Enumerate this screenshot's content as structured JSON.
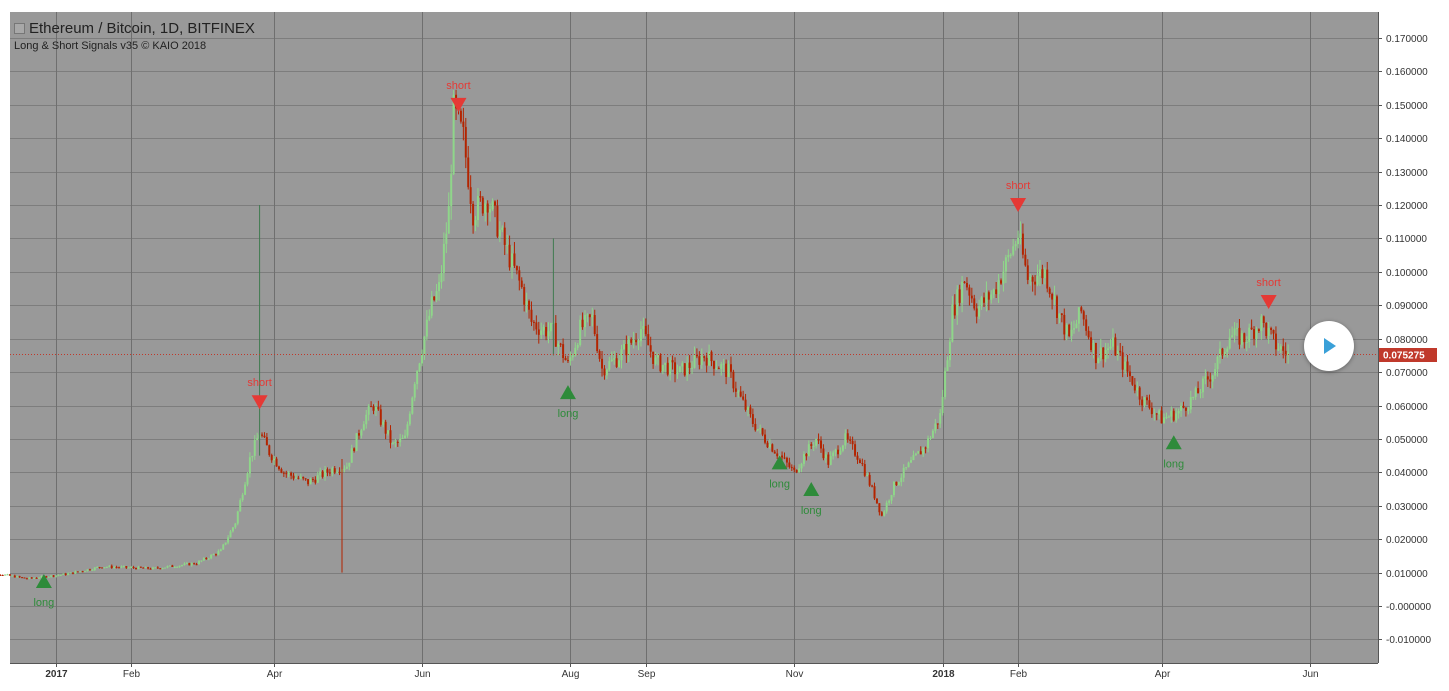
{
  "header": {
    "title": "Ethereum / Bitcoin, 1D, BITFINEX",
    "subtitle": "Long & Short Signals v35 © KAIO 2018"
  },
  "price_label": "0.075275",
  "colors": {
    "plot_bg": "#999999",
    "up": "#8fd68a",
    "down": "#b32400",
    "short": "#e53935",
    "long": "#2e8b3a",
    "price_line": "#c0392b",
    "play": "#3aa0d8"
  },
  "play_button": {
    "icon": "play-icon"
  },
  "chart_data": {
    "type": "candlestick",
    "symbol": "Ethereum / Bitcoin",
    "interval": "1D",
    "exchange": "BITFINEX",
    "indicator": "Long & Short Signals v35 © KAIO 2018",
    "ylim": [
      -0.013,
      0.177
    ],
    "yticks": [
      "0.170000",
      "0.160000",
      "0.150000",
      "0.140000",
      "0.130000",
      "0.120000",
      "0.110000",
      "0.100000",
      "0.090000",
      "0.080000",
      "0.070000",
      "0.060000",
      "0.050000",
      "0.040000",
      "0.030000",
      "0.020000",
      "0.010000",
      "-0.000000",
      "-0.010000"
    ],
    "xticks": [
      {
        "label": "2017",
        "date": "2017-01-01",
        "bold": true
      },
      {
        "label": "Feb",
        "date": "2017-02-01"
      },
      {
        "label": "Apr",
        "date": "2017-04-01"
      },
      {
        "label": "Jun",
        "date": "2017-06-01"
      },
      {
        "label": "Aug",
        "date": "2017-08-01"
      },
      {
        "label": "Sep",
        "date": "2017-09-01"
      },
      {
        "label": "Nov",
        "date": "2017-11-01"
      },
      {
        "label": "2018",
        "date": "2018-01-01",
        "bold": true
      },
      {
        "label": "Feb",
        "date": "2018-02-01"
      },
      {
        "label": "Apr",
        "date": "2018-04-01"
      },
      {
        "label": "Jun",
        "date": "2018-06-01"
      }
    ],
    "last_price": 0.075275,
    "close_path": [
      [
        "2016-12-01",
        0.0105
      ],
      [
        "2016-12-20",
        0.0082
      ],
      [
        "2017-01-05",
        0.0095
      ],
      [
        "2017-01-20",
        0.0118
      ],
      [
        "2017-02-10",
        0.0112
      ],
      [
        "2017-02-28",
        0.0128
      ],
      [
        "2017-03-10",
        0.0165
      ],
      [
        "2017-03-16",
        0.025
      ],
      [
        "2017-03-22",
        0.044
      ],
      [
        "2017-03-26",
        0.052
      ],
      [
        "2017-03-30",
        0.046
      ],
      [
        "2017-04-05",
        0.04
      ],
      [
        "2017-04-15",
        0.037
      ],
      [
        "2017-04-25",
        0.041
      ],
      [
        "2017-05-01",
        0.042
      ],
      [
        "2017-05-08",
        0.056
      ],
      [
        "2017-05-12",
        0.06
      ],
      [
        "2017-05-20",
        0.048
      ],
      [
        "2017-05-25",
        0.05
      ],
      [
        "2017-05-29",
        0.068
      ],
      [
        "2017-06-05",
        0.09
      ],
      [
        "2017-06-08",
        0.095
      ],
      [
        "2017-06-12",
        0.118
      ],
      [
        "2017-06-14",
        0.148
      ],
      [
        "2017-06-18",
        0.14
      ],
      [
        "2017-06-22",
        0.118
      ],
      [
        "2017-06-28",
        0.122
      ],
      [
        "2017-07-05",
        0.108
      ],
      [
        "2017-07-12",
        0.095
      ],
      [
        "2017-07-16",
        0.085
      ],
      [
        "2017-07-20",
        0.083
      ],
      [
        "2017-07-25",
        0.082
      ],
      [
        "2017-07-31",
        0.072
      ],
      [
        "2017-08-05",
        0.083
      ],
      [
        "2017-08-10",
        0.086
      ],
      [
        "2017-08-14",
        0.071
      ],
      [
        "2017-08-20",
        0.074
      ],
      [
        "2017-08-25",
        0.078
      ],
      [
        "2017-08-30",
        0.083
      ],
      [
        "2017-09-05",
        0.073
      ],
      [
        "2017-09-15",
        0.07
      ],
      [
        "2017-09-25",
        0.075
      ],
      [
        "2017-10-05",
        0.07
      ],
      [
        "2017-10-10",
        0.062
      ],
      [
        "2017-10-15",
        0.055
      ],
      [
        "2017-10-20",
        0.05
      ],
      [
        "2017-10-26",
        0.045
      ],
      [
        "2017-11-01",
        0.04
      ],
      [
        "2017-11-05",
        0.045
      ],
      [
        "2017-11-10",
        0.05
      ],
      [
        "2017-11-15",
        0.043
      ],
      [
        "2017-11-22",
        0.05
      ],
      [
        "2017-11-28",
        0.044
      ],
      [
        "2017-12-04",
        0.033
      ],
      [
        "2017-12-07",
        0.027
      ],
      [
        "2017-12-12",
        0.036
      ],
      [
        "2017-12-18",
        0.042
      ],
      [
        "2017-12-25",
        0.048
      ],
      [
        "2017-12-31",
        0.057
      ],
      [
        "2018-01-05",
        0.088
      ],
      [
        "2018-01-10",
        0.098
      ],
      [
        "2018-01-15",
        0.089
      ],
      [
        "2018-01-22",
        0.094
      ],
      [
        "2018-01-28",
        0.104
      ],
      [
        "2018-02-01",
        0.111
      ],
      [
        "2018-02-05",
        0.098
      ],
      [
        "2018-02-12",
        0.1
      ],
      [
        "2018-02-18",
        0.087
      ],
      [
        "2018-02-22",
        0.08
      ],
      [
        "2018-02-27",
        0.088
      ],
      [
        "2018-03-05",
        0.075
      ],
      [
        "2018-03-12",
        0.078
      ],
      [
        "2018-03-18",
        0.07
      ],
      [
        "2018-03-24",
        0.062
      ],
      [
        "2018-04-01",
        0.056
      ],
      [
        "2018-04-08",
        0.058
      ],
      [
        "2018-04-15",
        0.063
      ],
      [
        "2018-04-22",
        0.07
      ],
      [
        "2018-04-29",
        0.081
      ],
      [
        "2018-05-05",
        0.08
      ],
      [
        "2018-05-12",
        0.085
      ],
      [
        "2018-05-18",
        0.078
      ],
      [
        "2018-05-23",
        0.075275
      ]
    ],
    "spikes": [
      {
        "date": "2017-03-26",
        "high": 0.12,
        "low": 0.045
      },
      {
        "date": "2017-04-29",
        "high": 0.044,
        "low": 0.01
      },
      {
        "date": "2017-07-25",
        "high": 0.11,
        "low": 0.075
      }
    ],
    "signals": [
      {
        "type": "long",
        "label": "long",
        "date": "2016-12-27",
        "price": 0.0075
      },
      {
        "type": "short",
        "label": "short",
        "date": "2017-03-26",
        "price": 0.061
      },
      {
        "type": "short",
        "label": "short",
        "date": "2017-06-16",
        "price": 0.15
      },
      {
        "type": "long",
        "label": "long",
        "date": "2017-07-31",
        "price": 0.064
      },
      {
        "type": "long",
        "label": "long",
        "date": "2017-10-26",
        "price": 0.043
      },
      {
        "type": "long",
        "label": "long",
        "date": "2017-11-08",
        "price": 0.035
      },
      {
        "type": "short",
        "label": "short",
        "date": "2018-02-01",
        "price": 0.12
      },
      {
        "type": "long",
        "label": "long",
        "date": "2018-04-06",
        "price": 0.049
      },
      {
        "type": "short",
        "label": "short",
        "date": "2018-05-15",
        "price": 0.091
      }
    ]
  }
}
